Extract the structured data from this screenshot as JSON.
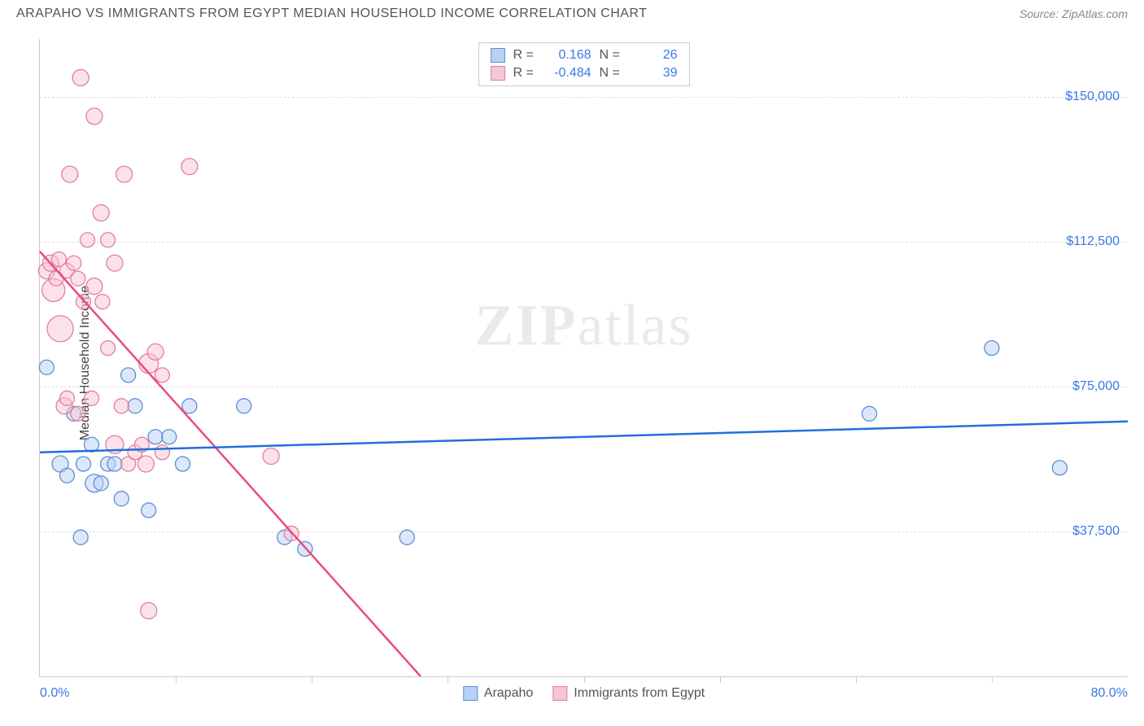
{
  "header": {
    "title": "ARAPAHO VS IMMIGRANTS FROM EGYPT MEDIAN HOUSEHOLD INCOME CORRELATION CHART",
    "source_prefix": "Source: ",
    "source_name": "ZipAtlas.com"
  },
  "chart": {
    "type": "scatter",
    "ylabel": "Median Household Income",
    "xlim": [
      0,
      80
    ],
    "ylim": [
      0,
      165000
    ],
    "x_axis": {
      "min_label": "0.0%",
      "max_label": "80.0%",
      "tick_positions_pct": [
        10,
        20,
        30,
        40,
        50,
        60,
        70
      ]
    },
    "y_gridlines": [
      {
        "value": 37500,
        "label": "$37,500"
      },
      {
        "value": 75000,
        "label": "$75,000"
      },
      {
        "value": 112500,
        "label": "$112,500"
      },
      {
        "value": 150000,
        "label": "$150,000"
      }
    ],
    "series": [
      {
        "name": "Arapaho",
        "color_fill": "#b9d1f4",
        "color_stroke": "#5b8fd6",
        "trend_color": "#1f6fe0",
        "trend_dash_color": "#b9d1f4",
        "legend_fill": "#b9d1f4",
        "legend_stroke": "#5b8fd6",
        "stats": {
          "R": "0.168",
          "N": "26"
        },
        "trendline": {
          "x1": 0,
          "y1": 58000,
          "x2": 80,
          "y2": 66000
        },
        "points": [
          {
            "x": 0.5,
            "y": 80000,
            "r": 9
          },
          {
            "x": 1.5,
            "y": 55000,
            "r": 10
          },
          {
            "x": 2.0,
            "y": 52000,
            "r": 9
          },
          {
            "x": 2.5,
            "y": 68000,
            "r": 9
          },
          {
            "x": 3.0,
            "y": 36000,
            "r": 9
          },
          {
            "x": 3.2,
            "y": 55000,
            "r": 9
          },
          {
            "x": 3.8,
            "y": 60000,
            "r": 9
          },
          {
            "x": 4.0,
            "y": 50000,
            "r": 11
          },
          {
            "x": 4.5,
            "y": 50000,
            "r": 9
          },
          {
            "x": 5.0,
            "y": 55000,
            "r": 9
          },
          {
            "x": 5.5,
            "y": 55000,
            "r": 9
          },
          {
            "x": 6.0,
            "y": 46000,
            "r": 9
          },
          {
            "x": 6.5,
            "y": 78000,
            "r": 9
          },
          {
            "x": 7.0,
            "y": 70000,
            "r": 9
          },
          {
            "x": 8.0,
            "y": 43000,
            "r": 9
          },
          {
            "x": 8.5,
            "y": 62000,
            "r": 9
          },
          {
            "x": 9.5,
            "y": 62000,
            "r": 9
          },
          {
            "x": 10.5,
            "y": 55000,
            "r": 9
          },
          {
            "x": 11.0,
            "y": 70000,
            "r": 9
          },
          {
            "x": 15.0,
            "y": 70000,
            "r": 9
          },
          {
            "x": 18.0,
            "y": 36000,
            "r": 9
          },
          {
            "x": 19.5,
            "y": 33000,
            "r": 9
          },
          {
            "x": 27.0,
            "y": 36000,
            "r": 9
          },
          {
            "x": 61.0,
            "y": 68000,
            "r": 9
          },
          {
            "x": 70.0,
            "y": 85000,
            "r": 9
          },
          {
            "x": 75.0,
            "y": 54000,
            "r": 9
          }
        ]
      },
      {
        "name": "Immigrants from Egypt",
        "color_fill": "#f6c6d5",
        "color_stroke": "#e77ba0",
        "trend_color": "#e94b86",
        "trend_dash_color": "#f6c6d5",
        "legend_fill": "#f6c6d5",
        "legend_stroke": "#e77ba0",
        "stats": {
          "R": "-0.484",
          "N": "39"
        },
        "trendline": {
          "x1": 0,
          "y1": 110000,
          "x2": 28,
          "y2": 0
        },
        "points": [
          {
            "x": 0.5,
            "y": 105000,
            "r": 10
          },
          {
            "x": 0.8,
            "y": 107000,
            "r": 10
          },
          {
            "x": 1.0,
            "y": 100000,
            "r": 14
          },
          {
            "x": 1.2,
            "y": 103000,
            "r": 9
          },
          {
            "x": 1.4,
            "y": 108000,
            "r": 9
          },
          {
            "x": 1.5,
            "y": 90000,
            "r": 16
          },
          {
            "x": 1.8,
            "y": 70000,
            "r": 10
          },
          {
            "x": 2.0,
            "y": 72000,
            "r": 9
          },
          {
            "x": 2.0,
            "y": 105000,
            "r": 9
          },
          {
            "x": 2.2,
            "y": 130000,
            "r": 10
          },
          {
            "x": 2.5,
            "y": 107000,
            "r": 9
          },
          {
            "x": 2.8,
            "y": 103000,
            "r": 9
          },
          {
            "x": 2.8,
            "y": 68000,
            "r": 9
          },
          {
            "x": 3.0,
            "y": 155000,
            "r": 10
          },
          {
            "x": 3.2,
            "y": 97000,
            "r": 9
          },
          {
            "x": 3.5,
            "y": 113000,
            "r": 9
          },
          {
            "x": 3.8,
            "y": 72000,
            "r": 9
          },
          {
            "x": 4.0,
            "y": 101000,
            "r": 10
          },
          {
            "x": 4.0,
            "y": 145000,
            "r": 10
          },
          {
            "x": 4.5,
            "y": 120000,
            "r": 10
          },
          {
            "x": 4.6,
            "y": 97000,
            "r": 9
          },
          {
            "x": 5.0,
            "y": 113000,
            "r": 9
          },
          {
            "x": 5.0,
            "y": 85000,
            "r": 9
          },
          {
            "x": 5.5,
            "y": 107000,
            "r": 10
          },
          {
            "x": 5.5,
            "y": 60000,
            "r": 11
          },
          {
            "x": 6.0,
            "y": 70000,
            "r": 9
          },
          {
            "x": 6.2,
            "y": 130000,
            "r": 10
          },
          {
            "x": 6.5,
            "y": 55000,
            "r": 9
          },
          {
            "x": 7.0,
            "y": 58000,
            "r": 9
          },
          {
            "x": 7.5,
            "y": 60000,
            "r": 9
          },
          {
            "x": 7.8,
            "y": 55000,
            "r": 10
          },
          {
            "x": 8.0,
            "y": 81000,
            "r": 12
          },
          {
            "x": 8.0,
            "y": 17000,
            "r": 10
          },
          {
            "x": 8.5,
            "y": 84000,
            "r": 10
          },
          {
            "x": 9.0,
            "y": 58000,
            "r": 9
          },
          {
            "x": 9.0,
            "y": 78000,
            "r": 9
          },
          {
            "x": 11.0,
            "y": 132000,
            "r": 10
          },
          {
            "x": 17.0,
            "y": 57000,
            "r": 10
          },
          {
            "x": 18.5,
            "y": 37000,
            "r": 9
          }
        ]
      }
    ],
    "watermark": {
      "part1": "ZIP",
      "part2": "atlas"
    },
    "background_color": "#ffffff",
    "grid_color": "#dddddd",
    "axis_color": "#cccccc",
    "text_color": "#555555",
    "value_color": "#3b78e7"
  },
  "stats_box": {
    "r_label": "R =",
    "n_label": "N ="
  },
  "bottom_legend": {
    "items": [
      "Arapaho",
      "Immigrants from Egypt"
    ]
  }
}
